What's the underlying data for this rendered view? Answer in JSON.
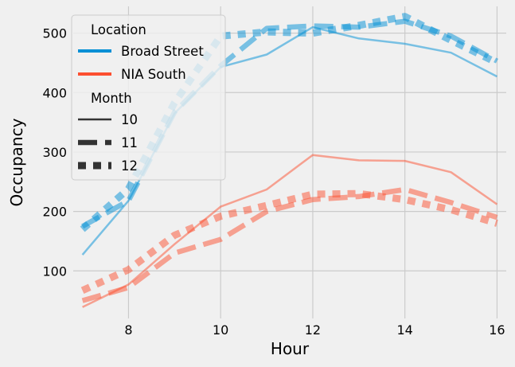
{
  "chart_data": {
    "type": "line",
    "title": "",
    "xlabel": "Hour",
    "ylabel": "Occupancy",
    "xlim": [
      6.8,
      16.2
    ],
    "ylim": [
      20,
      545
    ],
    "xticks": [
      8,
      10,
      12,
      14,
      16
    ],
    "yticks": [
      100,
      200,
      300,
      400,
      500
    ],
    "grid": true,
    "legend": {
      "placement": "top-left",
      "hue_title": "Location",
      "style_title": "Month",
      "hue_entries": [
        {
          "label": "Broad Street",
          "color": "#008fd5"
        },
        {
          "label": "NIA South",
          "color": "#fc4f30"
        }
      ],
      "style_entries": [
        {
          "label": "10",
          "style": "solid"
        },
        {
          "label": "11",
          "style": "dashed"
        },
        {
          "label": "12",
          "style": "dotted"
        }
      ]
    },
    "series": [
      {
        "location": "Broad Street",
        "month": "10",
        "color": "#008fd5",
        "style": "solid",
        "x": [
          7,
          8,
          9,
          10,
          11,
          12,
          13,
          14,
          15,
          16
        ],
        "y": [
          127,
          218,
          365,
          443,
          464,
          510,
          491,
          482,
          467,
          427
        ]
      },
      {
        "location": "Broad Street",
        "month": "11",
        "color": "#008fd5",
        "style": "dashed",
        "x": [
          7,
          8,
          9,
          10,
          11,
          12,
          13,
          14,
          15,
          16
        ],
        "y": [
          175,
          218,
          367,
          445,
          508,
          512,
          510,
          520,
          495,
          453
        ]
      },
      {
        "location": "Broad Street",
        "month": "12",
        "color": "#008fd5",
        "style": "dotted",
        "x": [
          7,
          8,
          9,
          10,
          11,
          12,
          13,
          14,
          15,
          16
        ],
        "y": [
          170,
          238,
          383,
          495,
          502,
          500,
          513,
          528,
          488,
          450
        ]
      },
      {
        "location": "NIA South",
        "month": "10",
        "color": "#fc4f30",
        "style": "solid",
        "x": [
          7,
          8,
          9,
          10,
          11,
          12,
          13,
          14,
          15,
          16
        ],
        "y": [
          39,
          77,
          145,
          208,
          237,
          295,
          286,
          285,
          266,
          212
        ]
      },
      {
        "location": "NIA South",
        "month": "11",
        "color": "#fc4f30",
        "style": "dashed",
        "x": [
          7,
          8,
          9,
          10,
          11,
          12,
          13,
          14,
          15,
          16
        ],
        "y": [
          50,
          72,
          130,
          153,
          200,
          220,
          225,
          237,
          215,
          190
        ]
      },
      {
        "location": "NIA South",
        "month": "12",
        "color": "#fc4f30",
        "style": "dotted",
        "x": [
          7,
          8,
          9,
          10,
          11,
          12,
          13,
          14,
          15,
          16
        ],
        "y": [
          67,
          102,
          160,
          192,
          210,
          229,
          230,
          220,
          203,
          180
        ]
      }
    ]
  }
}
